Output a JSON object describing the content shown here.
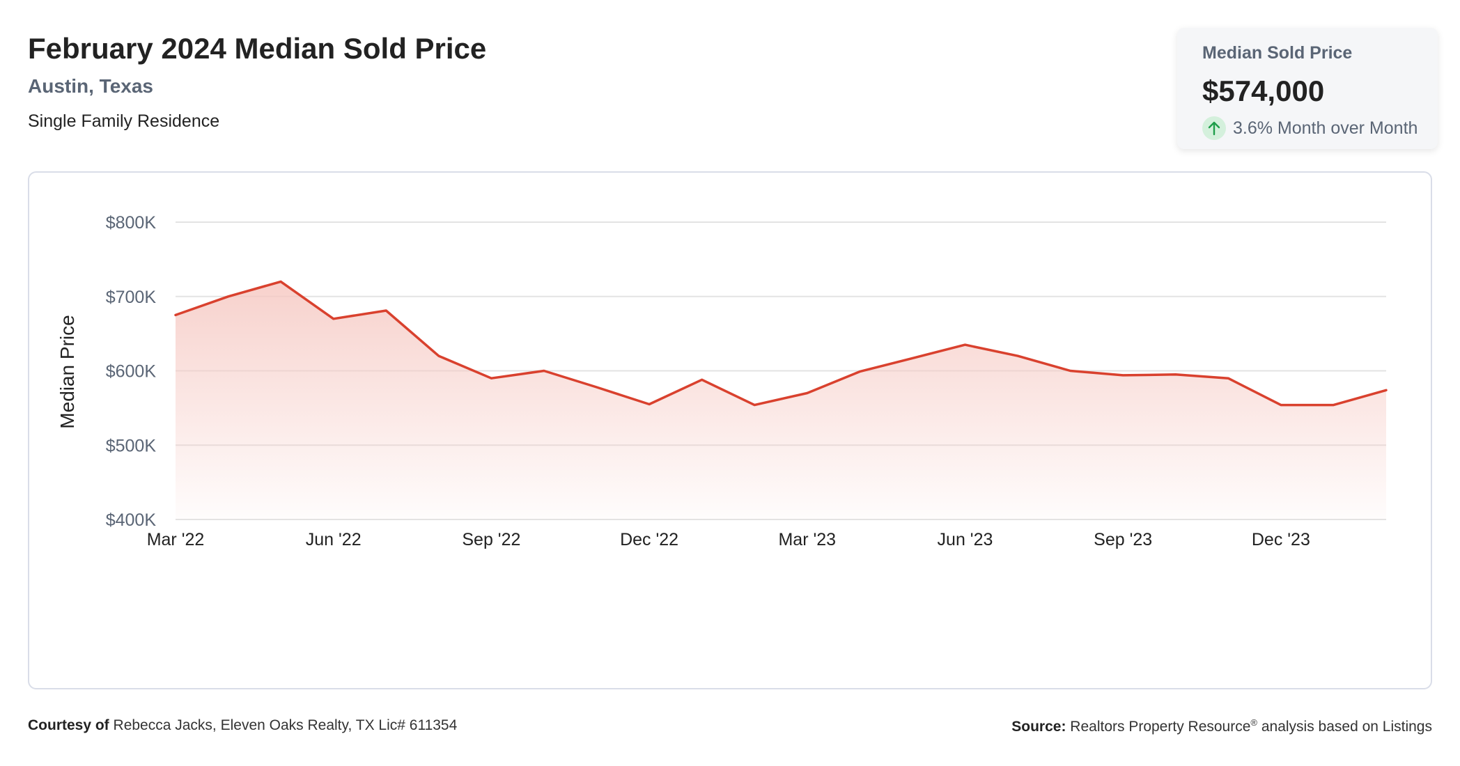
{
  "header": {
    "title": "February 2024 Median Sold Price",
    "location": "Austin, Texas",
    "property_type": "Single Family Residence"
  },
  "stat_card": {
    "label": "Median Sold Price",
    "value": "$574,000",
    "change": "3.6% Month over Month",
    "change_icon": "arrow-up-icon",
    "change_color": "#1e9e4a"
  },
  "footer": {
    "courtesy_label": "Courtesy of",
    "courtesy_text": "Rebecca Jacks, Eleven Oaks Realty, TX Lic# 611354",
    "source_label": "Source:",
    "source_text_a": "Realtors Property Resource",
    "source_mark": "®",
    "source_text_b": " analysis based on Listings"
  },
  "chart_data": {
    "type": "area",
    "title": "",
    "xlabel": "",
    "ylabel": "Median Price",
    "ylim": [
      400000,
      800000
    ],
    "y_ticks": [
      {
        "value": 400000,
        "label": "$400K"
      },
      {
        "value": 500000,
        "label": "$500K"
      },
      {
        "value": 600000,
        "label": "$600K"
      },
      {
        "value": 700000,
        "label": "$700K"
      },
      {
        "value": 800000,
        "label": "$800K"
      }
    ],
    "x": [
      "2022-03",
      "2022-04",
      "2022-05",
      "2022-06",
      "2022-07",
      "2022-08",
      "2022-09",
      "2022-10",
      "2022-11",
      "2022-12",
      "2023-01",
      "2023-02",
      "2023-03",
      "2023-04",
      "2023-05",
      "2023-06",
      "2023-07",
      "2023-08",
      "2023-09",
      "2023-10",
      "2023-11",
      "2023-12",
      "2024-01",
      "2024-02"
    ],
    "x_ticks": [
      {
        "x": "2022-03",
        "label": "Mar '22"
      },
      {
        "x": "2022-06",
        "label": "Jun '22"
      },
      {
        "x": "2022-09",
        "label": "Sep '22"
      },
      {
        "x": "2022-12",
        "label": "Dec '22"
      },
      {
        "x": "2023-03",
        "label": "Mar '23"
      },
      {
        "x": "2023-06",
        "label": "Jun '23"
      },
      {
        "x": "2023-09",
        "label": "Sep '23"
      },
      {
        "x": "2023-12",
        "label": "Dec '23"
      }
    ],
    "series": [
      {
        "values": [
          675000,
          700000,
          720000,
          670000,
          681000,
          620000,
          590000,
          600000,
          578000,
          555000,
          588000,
          554000,
          570000,
          599000,
          617000,
          635000,
          620000,
          600000,
          594000,
          595000,
          590000,
          554000,
          554000,
          574000
        ]
      }
    ],
    "line_color": "#d9412e",
    "fill_color": "#f6c9c3",
    "grid": true,
    "legend": "none"
  }
}
